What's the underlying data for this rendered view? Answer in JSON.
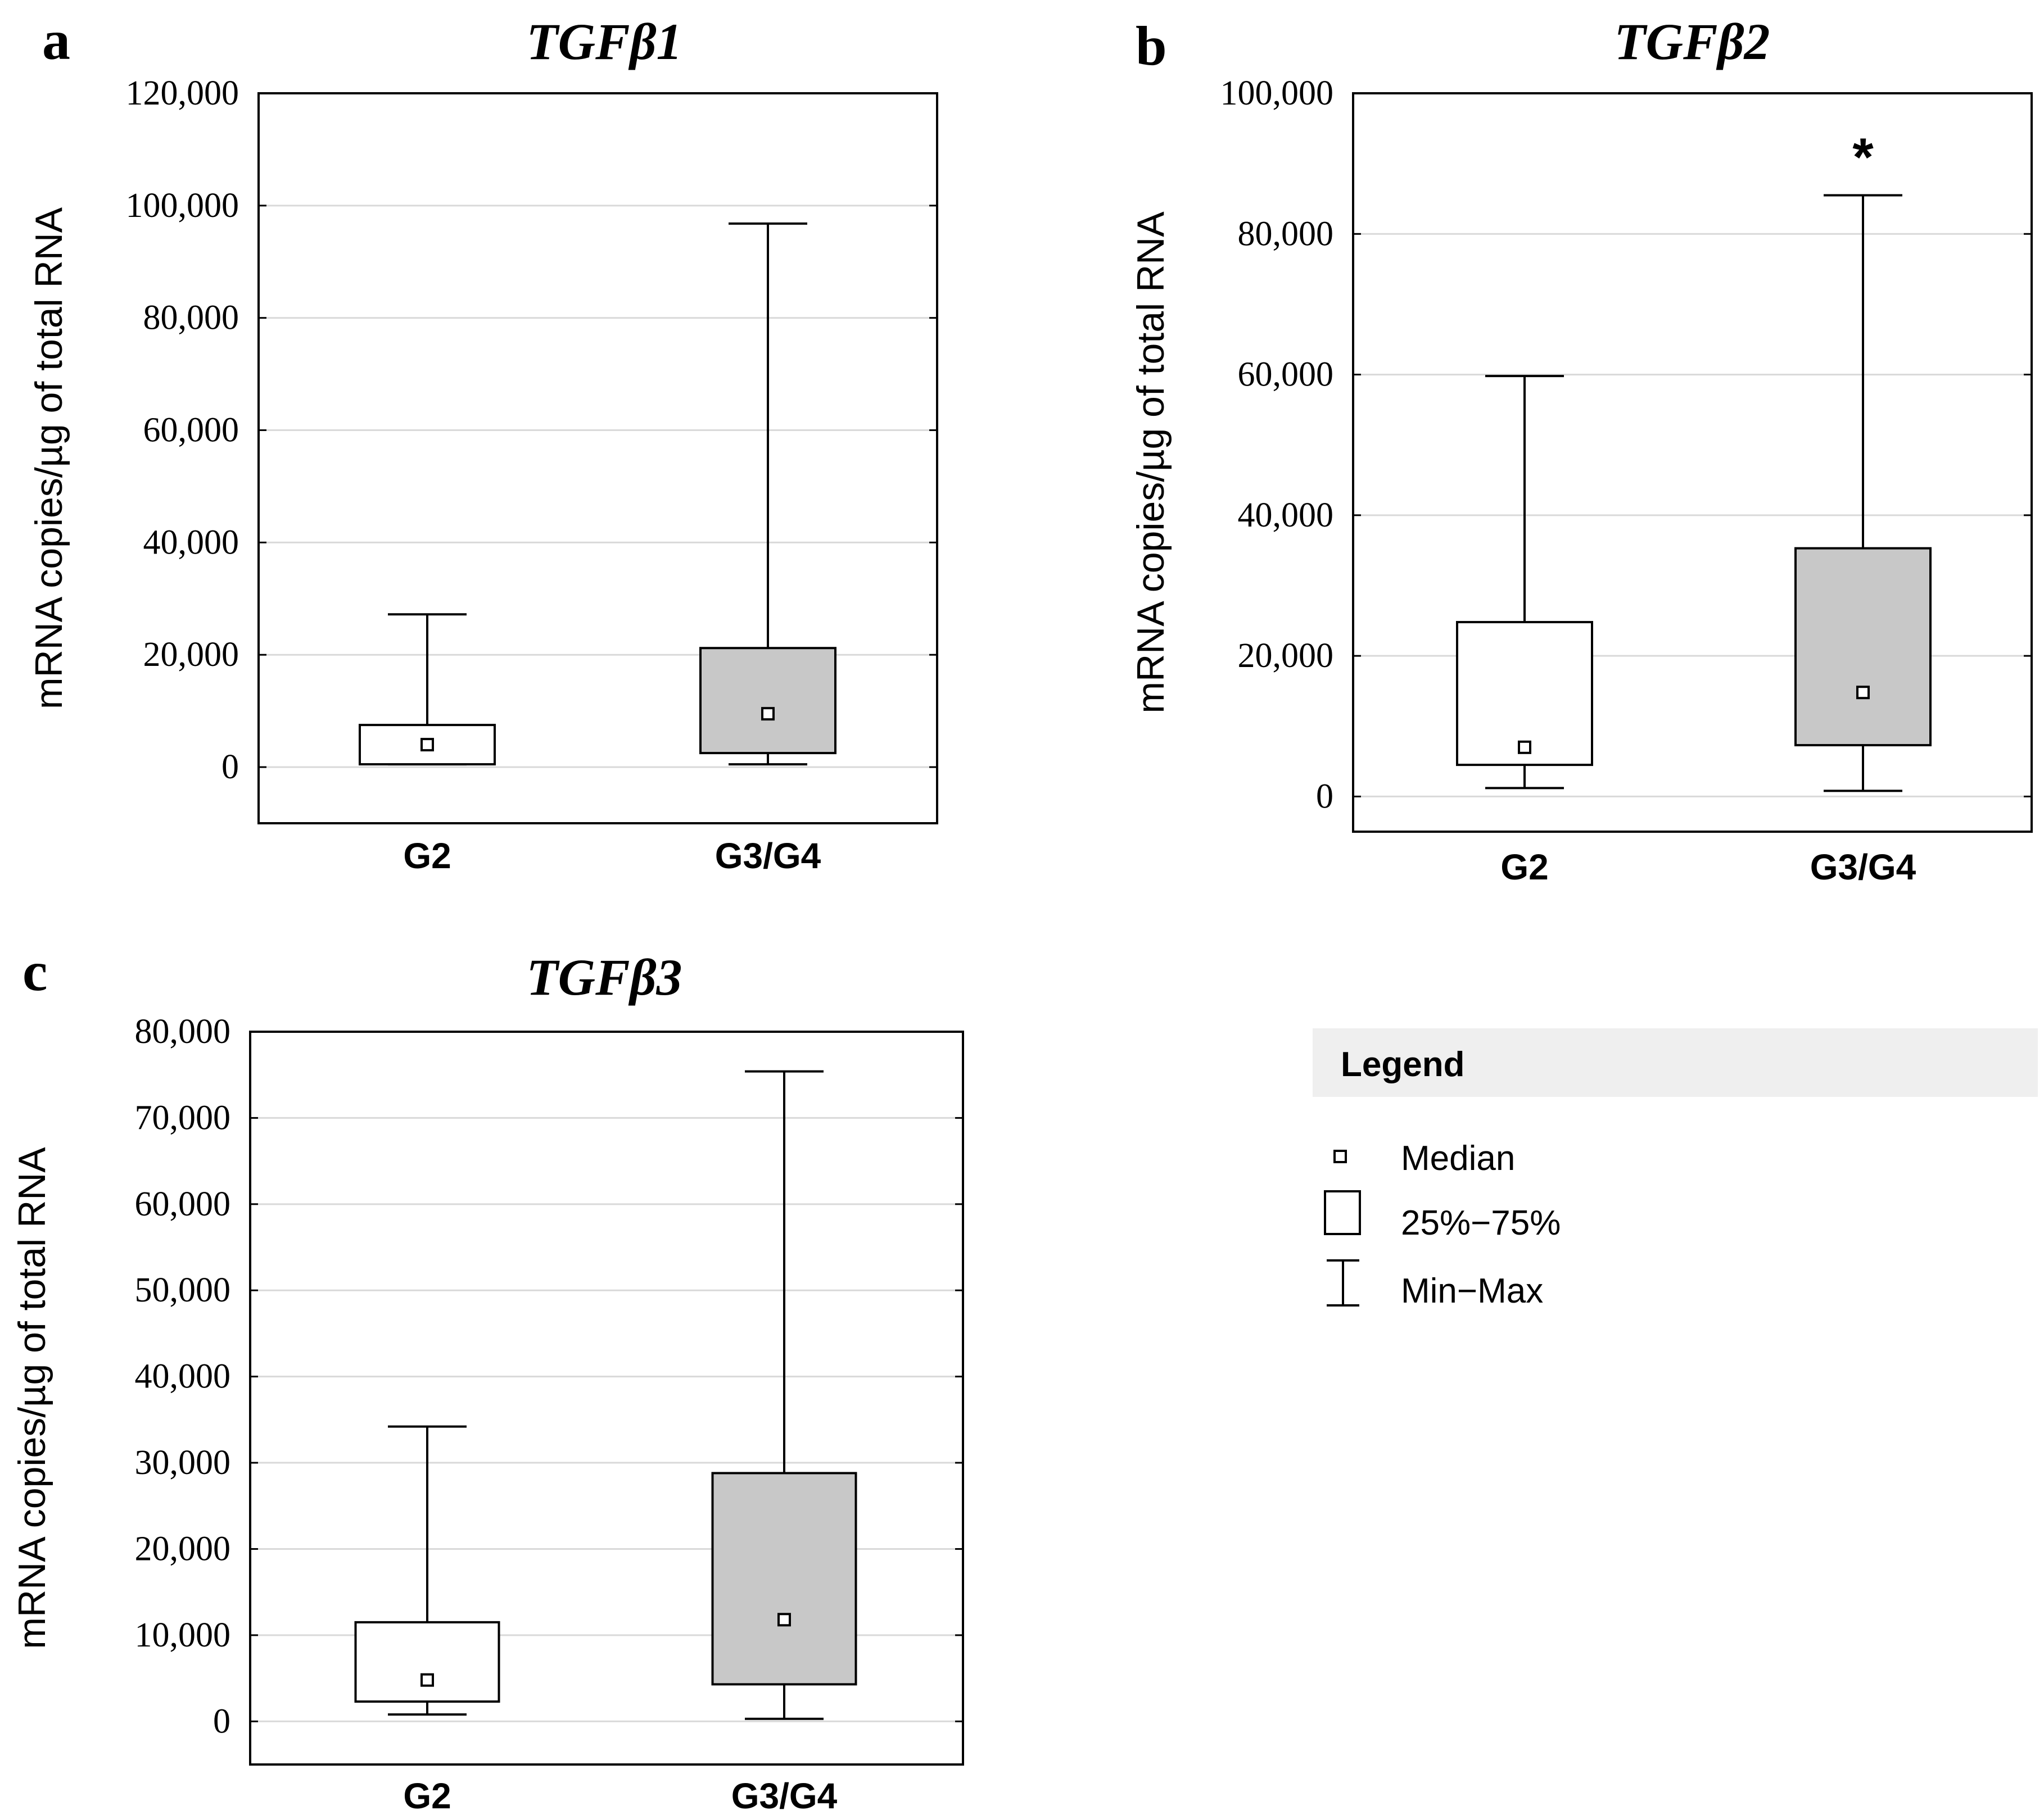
{
  "chart_data": [
    {
      "type": "box",
      "panel": "a",
      "title": "TGFβ1",
      "ylabel": "mRNA copies/µg of total RNA",
      "xlabel": "",
      "ylim": [
        -10000,
        120000
      ],
      "yticks": [
        0,
        20000,
        40000,
        60000,
        80000,
        100000,
        120000
      ],
      "ytick_labels": [
        "0",
        "20,000",
        "40,000",
        "60,000",
        "80,000",
        "100,000",
        "120,000"
      ],
      "categories": [
        "G2",
        "G3/G4"
      ],
      "boxes": [
        {
          "name": "G2",
          "min": 500,
          "q1": 500,
          "median": 4000,
          "q3": 7500,
          "max": 27200,
          "fill": "#ffffff"
        },
        {
          "name": "G3/G4",
          "min": 500,
          "q1": 2500,
          "median": 9500,
          "q3": 21200,
          "max": 96800,
          "fill": "#c8c8c8"
        }
      ],
      "annotations": [],
      "grid": true
    },
    {
      "type": "box",
      "panel": "b",
      "title": "TGFβ2",
      "ylabel": "mRNA copies/µg of total RNA",
      "xlabel": "",
      "ylim": [
        -5000,
        100000
      ],
      "yticks": [
        0,
        20000,
        40000,
        60000,
        80000,
        100000
      ],
      "ytick_labels": [
        "0",
        "20,000",
        "40,000",
        "60,000",
        "80,000",
        "100,000"
      ],
      "categories": [
        "G2",
        "G3/G4"
      ],
      "boxes": [
        {
          "name": "G2",
          "min": 1200,
          "q1": 4500,
          "median": 7000,
          "q3": 24800,
          "max": 59800,
          "fill": "#ffffff"
        },
        {
          "name": "G3/G4",
          "min": 800,
          "q1": 7300,
          "median": 14800,
          "q3": 35300,
          "max": 85500,
          "fill": "#c8c8c8"
        }
      ],
      "annotations": [
        {
          "category": "G3/G4",
          "text": "*"
        }
      ],
      "grid": true
    },
    {
      "type": "box",
      "panel": "c",
      "title": "TGFβ3",
      "ylabel": "mRNA copies/µg of total RNA",
      "xlabel": "",
      "ylim": [
        -5000,
        80000
      ],
      "yticks": [
        0,
        10000,
        20000,
        30000,
        40000,
        50000,
        60000,
        70000,
        80000
      ],
      "ytick_labels": [
        "0",
        "10,000",
        "20,000",
        "30,000",
        "40,000",
        "50,000",
        "60,000",
        "70,000",
        "80,000"
      ],
      "categories": [
        "G2",
        "G3/G4"
      ],
      "boxes": [
        {
          "name": "G2",
          "min": 800,
          "q1": 2300,
          "median": 4800,
          "q3": 11500,
          "max": 34200,
          "fill": "#ffffff"
        },
        {
          "name": "G3/G4",
          "min": 300,
          "q1": 4300,
          "median": 11800,
          "q3": 28800,
          "max": 75400,
          "fill": "#c8c8c8"
        }
      ],
      "annotations": [],
      "grid": true
    }
  ],
  "legend": {
    "title": "Legend",
    "items": [
      {
        "symbol": "median-marker",
        "label": "Median"
      },
      {
        "symbol": "box",
        "label": "25%−75%"
      },
      {
        "symbol": "whisker",
        "label": "Min−Max"
      }
    ]
  }
}
